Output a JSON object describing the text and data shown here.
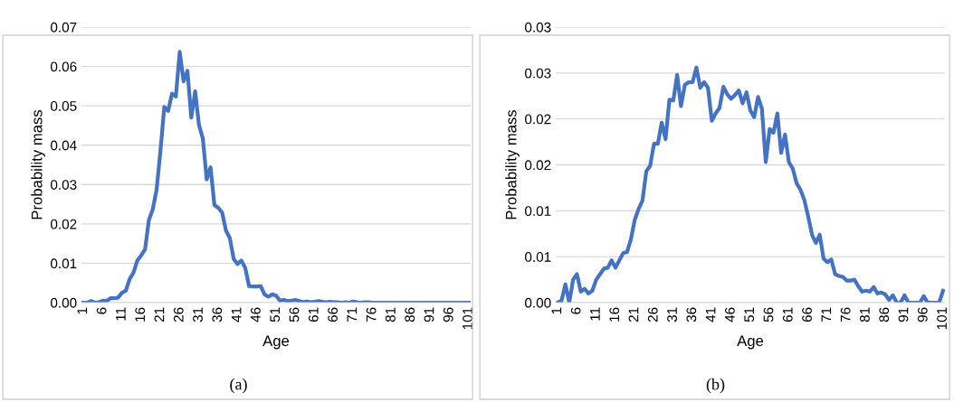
{
  "chart_data": [
    {
      "type": "line",
      "xlabel": "Age",
      "ylabel": "Probability mass",
      "annotations": [
        "(a)"
      ],
      "grid": "y",
      "legend": false,
      "marker": "none",
      "line_style": "solid",
      "categories": [
        "1",
        null,
        null,
        null,
        null,
        "6",
        null,
        null,
        null,
        null,
        "11",
        null,
        null,
        null,
        null,
        "16",
        null,
        null,
        null,
        null,
        "21",
        null,
        null,
        null,
        null,
        "26",
        null,
        null,
        null,
        null,
        "31",
        null,
        null,
        null,
        null,
        "36",
        null,
        null,
        null,
        null,
        "41",
        null,
        null,
        null,
        null,
        "46",
        null,
        null,
        null,
        null,
        "51",
        null,
        null,
        null,
        null,
        "56",
        null,
        null,
        null,
        null,
        "61",
        null,
        null,
        null,
        null,
        "66",
        null,
        null,
        null,
        null,
        "71",
        null,
        null,
        null,
        null,
        "76",
        null,
        null,
        null,
        null,
        "81",
        null,
        null,
        null,
        null,
        "86",
        null,
        null,
        null,
        null,
        "91",
        null,
        null,
        null,
        null,
        "96",
        null,
        null,
        null,
        null,
        "101"
      ],
      "ylim": [
        0,
        0.07
      ],
      "yticks": [
        {
          "value": 0,
          "label": "0.00"
        },
        {
          "value": 0.01,
          "label": "0.01"
        },
        {
          "value": 0.02,
          "label": "0.02"
        },
        {
          "value": 0.03,
          "label": "0.03"
        },
        {
          "value": 0.04,
          "label": "0.04"
        },
        {
          "value": 0.05,
          "label": "0.05"
        },
        {
          "value": 0.06,
          "label": "0.06"
        },
        {
          "value": 0.07,
          "label": "0.07"
        }
      ],
      "series": [
        {
          "color": "#4472c4",
          "values": [
            0,
            0,
            0.0004,
            0,
            0.0001,
            0.0005,
            0.0004,
            0.0011,
            0.0011,
            0.0013,
            0.0025,
            0.003,
            0.006,
            0.0076,
            0.0107,
            0.012,
            0.0135,
            0.021,
            0.0237,
            0.0287,
            0.0386,
            0.0497,
            0.0487,
            0.0531,
            0.0524,
            0.0637,
            0.0562,
            0.0589,
            0.047,
            0.0537,
            0.0451,
            0.0417,
            0.0313,
            0.0344,
            0.0248,
            0.0241,
            0.0229,
            0.0183,
            0.0164,
            0.0111,
            0.0098,
            0.0107,
            0.0088,
            0.0042,
            0.0041,
            0.0041,
            0.0042,
            0.0021,
            0.0015,
            0.0021,
            0.0018,
            0.0005,
            0.0007,
            0.0004,
            0.0005,
            0.0007,
            0.0004,
            0.0001,
            0.0003,
            0.0001,
            0.0002,
            0.0004,
            0.0002,
            0.0001,
            0.0002,
            0.0001,
            0.0001,
            0,
            0.0001,
            0,
            0.0003,
            0.0001,
            0,
            0.0001,
            0.0001,
            0,
            0,
            0,
            0,
            0,
            0,
            0,
            0,
            0,
            0,
            0,
            0,
            0,
            0,
            0,
            0,
            0,
            0,
            0,
            0,
            0,
            0,
            0,
            0,
            0,
            0
          ]
        }
      ]
    },
    {
      "type": "line",
      "xlabel": "Age",
      "ylabel": "Probability mass",
      "annotations": [
        "(b)"
      ],
      "grid": "y",
      "legend": false,
      "marker": "none",
      "line_style": "solid",
      "categories": [
        "1",
        null,
        null,
        null,
        null,
        "6",
        null,
        null,
        null,
        null,
        "11",
        null,
        null,
        null,
        null,
        "16",
        null,
        null,
        null,
        null,
        "21",
        null,
        null,
        null,
        null,
        "26",
        null,
        null,
        null,
        null,
        "31",
        null,
        null,
        null,
        null,
        "36",
        null,
        null,
        null,
        null,
        "41",
        null,
        null,
        null,
        null,
        "46",
        null,
        null,
        null,
        null,
        "51",
        null,
        null,
        null,
        null,
        "56",
        null,
        null,
        null,
        null,
        "61",
        null,
        null,
        null,
        null,
        "66",
        null,
        null,
        null,
        null,
        "71",
        null,
        null,
        null,
        null,
        "76",
        null,
        null,
        null,
        null,
        "81",
        null,
        null,
        null,
        null,
        "86",
        null,
        null,
        null,
        null,
        "91",
        null,
        null,
        null,
        null,
        "96",
        null,
        null,
        null,
        null,
        "101"
      ],
      "ylim": [
        0,
        0.03
      ],
      "yticks": [
        {
          "value": 0,
          "label": "0.00"
        },
        {
          "value": 0.005,
          "label": "0.01"
        },
        {
          "value": 0.01,
          "label": "0.01"
        },
        {
          "value": 0.015,
          "label": "0.02"
        },
        {
          "value": 0.02,
          "label": "0.02"
        },
        {
          "value": 0.025,
          "label": "0.03"
        },
        {
          "value": 0.03,
          "label": "0.03"
        }
      ],
      "series": [
        {
          "color": "#4472c4",
          "values": [
            0,
            0.0002,
            0.002,
            0,
            0.0025,
            0.0031,
            0.0012,
            0.0015,
            0.001,
            0.0013,
            0.0025,
            0.0031,
            0.0037,
            0.0038,
            0.0046,
            0.0038,
            0.0046,
            0.0054,
            0.0055,
            0.0069,
            0.009,
            0.0102,
            0.0111,
            0.0143,
            0.0149,
            0.0173,
            0.0173,
            0.0196,
            0.0178,
            0.0221,
            0.022,
            0.0248,
            0.0214,
            0.0237,
            0.024,
            0.024,
            0.0256,
            0.0234,
            0.024,
            0.0234,
            0.0198,
            0.0206,
            0.0212,
            0.0235,
            0.0227,
            0.0222,
            0.0226,
            0.0231,
            0.0217,
            0.0229,
            0.0209,
            0.0202,
            0.0224,
            0.0211,
            0.0153,
            0.0189,
            0.0185,
            0.0206,
            0.0163,
            0.0183,
            0.0153,
            0.0146,
            0.013,
            0.0123,
            0.0112,
            0.0094,
            0.0074,
            0.0065,
            0.0074,
            0.0048,
            0.0044,
            0.0047,
            0.0031,
            0.0029,
            0.0028,
            0.0024,
            0.0024,
            0.0025,
            0.0018,
            0.0012,
            0.0013,
            0.0012,
            0.0017,
            0.001,
            0.0011,
            0.0009,
            0.0003,
            0.0008,
            0,
            0,
            0.0008,
            0,
            0,
            0,
            0,
            0.0007,
            0,
            0,
            0,
            0,
            0.0013
          ]
        }
      ]
    }
  ]
}
